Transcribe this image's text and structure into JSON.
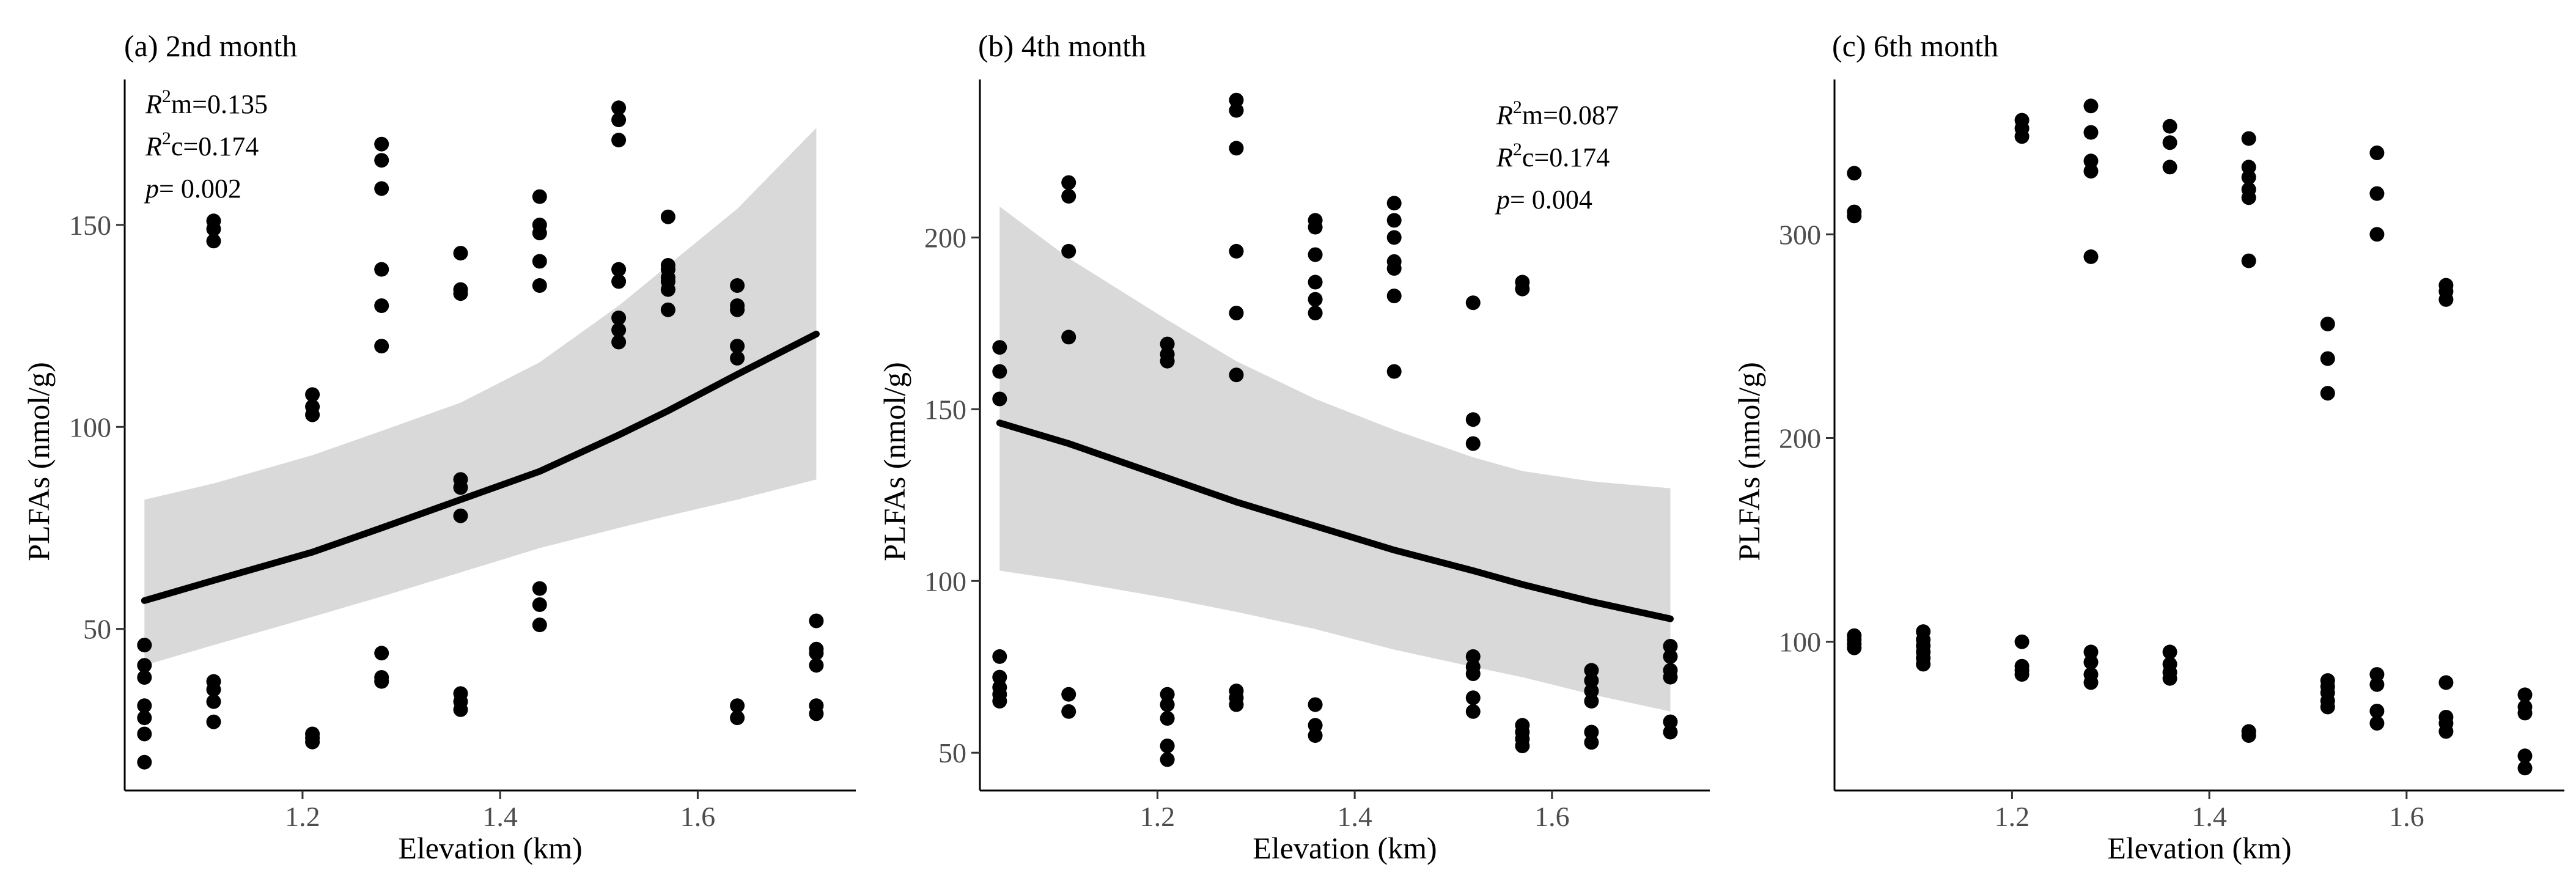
{
  "chart_data": [
    {
      "type": "scatter",
      "title": "(a) 2nd month",
      "xlabel": "Elevation (km)",
      "ylabel": "PLFAs (nmol/g)",
      "xlim": [
        1.02,
        1.76
      ],
      "ylim": [
        10,
        186
      ],
      "xticks": [
        1.2,
        1.4,
        1.6
      ],
      "xtick_labels": [
        "1.2",
        "1.4",
        "1.6"
      ],
      "yticks": [
        50,
        100,
        150
      ],
      "ytick_labels": [
        "50",
        "100",
        "150"
      ],
      "stats": {
        "r2m_label": "m=",
        "r2m_value": "0.135",
        "r2c_label": "c=",
        "r2c_value": "0.174",
        "p_label": "= ",
        "p_value": "0.002"
      },
      "points": [
        [
          1.04,
          46
        ],
        [
          1.04,
          41
        ],
        [
          1.04,
          38
        ],
        [
          1.04,
          31
        ],
        [
          1.04,
          28
        ],
        [
          1.04,
          24
        ],
        [
          1.04,
          17
        ],
        [
          1.11,
          151
        ],
        [
          1.11,
          149
        ],
        [
          1.11,
          146
        ],
        [
          1.11,
          37
        ],
        [
          1.11,
          35
        ],
        [
          1.11,
          32
        ],
        [
          1.11,
          27
        ],
        [
          1.21,
          108
        ],
        [
          1.21,
          105
        ],
        [
          1.21,
          103
        ],
        [
          1.21,
          24
        ],
        [
          1.21,
          23
        ],
        [
          1.21,
          22
        ],
        [
          1.28,
          170
        ],
        [
          1.28,
          166
        ],
        [
          1.28,
          159
        ],
        [
          1.28,
          139
        ],
        [
          1.28,
          130
        ],
        [
          1.28,
          120
        ],
        [
          1.28,
          44
        ],
        [
          1.28,
          38
        ],
        [
          1.28,
          37
        ],
        [
          1.36,
          143
        ],
        [
          1.36,
          134
        ],
        [
          1.36,
          133
        ],
        [
          1.36,
          87
        ],
        [
          1.36,
          85
        ],
        [
          1.36,
          78
        ],
        [
          1.36,
          34
        ],
        [
          1.36,
          32
        ],
        [
          1.36,
          30
        ],
        [
          1.44,
          157
        ],
        [
          1.44,
          150
        ],
        [
          1.44,
          148
        ],
        [
          1.44,
          141
        ],
        [
          1.44,
          135
        ],
        [
          1.44,
          60
        ],
        [
          1.44,
          56
        ],
        [
          1.44,
          51
        ],
        [
          1.52,
          179
        ],
        [
          1.52,
          176
        ],
        [
          1.52,
          171
        ],
        [
          1.52,
          139
        ],
        [
          1.52,
          136
        ],
        [
          1.52,
          127
        ],
        [
          1.52,
          124
        ],
        [
          1.52,
          121
        ],
        [
          1.57,
          152
        ],
        [
          1.57,
          140
        ],
        [
          1.57,
          139
        ],
        [
          1.57,
          137
        ],
        [
          1.57,
          136
        ],
        [
          1.57,
          134
        ],
        [
          1.57,
          129
        ],
        [
          1.64,
          135
        ],
        [
          1.64,
          130
        ],
        [
          1.64,
          129
        ],
        [
          1.64,
          120
        ],
        [
          1.64,
          117
        ],
        [
          1.64,
          31
        ],
        [
          1.64,
          28
        ],
        [
          1.72,
          52
        ],
        [
          1.72,
          45
        ],
        [
          1.72,
          44
        ],
        [
          1.72,
          41
        ],
        [
          1.72,
          31
        ],
        [
          1.72,
          29
        ]
      ],
      "fit": {
        "x": [
          1.04,
          1.11,
          1.21,
          1.28,
          1.36,
          1.44,
          1.52,
          1.57,
          1.64,
          1.72
        ],
        "y": [
          57,
          62,
          69,
          75,
          82,
          89,
          98,
          104,
          113,
          123
        ]
      },
      "ci_upper": {
        "x": [
          1.04,
          1.11,
          1.21,
          1.28,
          1.36,
          1.44,
          1.52,
          1.57,
          1.64,
          1.72
        ],
        "y": [
          82,
          86,
          93,
          99,
          106,
          116,
          130,
          140,
          154,
          174
        ]
      },
      "ci_lower": {
        "x": [
          1.04,
          1.11,
          1.21,
          1.28,
          1.36,
          1.44,
          1.52,
          1.57,
          1.64,
          1.72
        ],
        "y": [
          41,
          46,
          53,
          58,
          64,
          70,
          75,
          78,
          82,
          87
        ]
      }
    },
    {
      "type": "scatter",
      "title": "(b) 4th month",
      "xlabel": "Elevation (km)",
      "ylabel": "PLFAs (nmol/g)",
      "xlim": [
        1.02,
        1.76
      ],
      "ylim": [
        39,
        246
      ],
      "xticks": [
        1.2,
        1.4,
        1.6
      ],
      "xtick_labels": [
        "1.2",
        "1.4",
        "1.6"
      ],
      "yticks": [
        50,
        100,
        150,
        200
      ],
      "ytick_labels": [
        "50",
        "100",
        "150",
        "200"
      ],
      "stats": {
        "r2m_label": "m=",
        "r2m_value": "0.087",
        "r2c_label": "c=",
        "r2c_value": "0.174",
        "p_label": "= ",
        "p_value": "0.004"
      },
      "points": [
        [
          1.04,
          168
        ],
        [
          1.04,
          161
        ],
        [
          1.04,
          153
        ],
        [
          1.04,
          78
        ],
        [
          1.04,
          72
        ],
        [
          1.04,
          69
        ],
        [
          1.04,
          67
        ],
        [
          1.04,
          65
        ],
        [
          1.11,
          216
        ],
        [
          1.11,
          212
        ],
        [
          1.11,
          196
        ],
        [
          1.11,
          171
        ],
        [
          1.11,
          67
        ],
        [
          1.11,
          62
        ],
        [
          1.21,
          169
        ],
        [
          1.21,
          166
        ],
        [
          1.21,
          164
        ],
        [
          1.21,
          67
        ],
        [
          1.21,
          64
        ],
        [
          1.21,
          60
        ],
        [
          1.21,
          52
        ],
        [
          1.21,
          48
        ],
        [
          1.28,
          240
        ],
        [
          1.28,
          237
        ],
        [
          1.28,
          226
        ],
        [
          1.28,
          196
        ],
        [
          1.28,
          178
        ],
        [
          1.28,
          160
        ],
        [
          1.28,
          68
        ],
        [
          1.28,
          66
        ],
        [
          1.28,
          64
        ],
        [
          1.36,
          205
        ],
        [
          1.36,
          203
        ],
        [
          1.36,
          195
        ],
        [
          1.36,
          187
        ],
        [
          1.36,
          182
        ],
        [
          1.36,
          178
        ],
        [
          1.36,
          64
        ],
        [
          1.36,
          58
        ],
        [
          1.36,
          55
        ],
        [
          1.44,
          210
        ],
        [
          1.44,
          205
        ],
        [
          1.44,
          200
        ],
        [
          1.44,
          193
        ],
        [
          1.44,
          191
        ],
        [
          1.44,
          183
        ],
        [
          1.44,
          161
        ],
        [
          1.52,
          181
        ],
        [
          1.52,
          147
        ],
        [
          1.52,
          140
        ],
        [
          1.52,
          78
        ],
        [
          1.52,
          75
        ],
        [
          1.52,
          73
        ],
        [
          1.52,
          66
        ],
        [
          1.52,
          62
        ],
        [
          1.57,
          187
        ],
        [
          1.57,
          185
        ],
        [
          1.57,
          58
        ],
        [
          1.57,
          56
        ],
        [
          1.57,
          54
        ],
        [
          1.57,
          52
        ],
        [
          1.64,
          74
        ],
        [
          1.64,
          71
        ],
        [
          1.64,
          68
        ],
        [
          1.64,
          65
        ],
        [
          1.64,
          56
        ],
        [
          1.64,
          53
        ],
        [
          1.72,
          81
        ],
        [
          1.72,
          78
        ],
        [
          1.72,
          74
        ],
        [
          1.72,
          72
        ],
        [
          1.72,
          59
        ],
        [
          1.72,
          56
        ]
      ],
      "fit": {
        "x": [
          1.04,
          1.11,
          1.21,
          1.28,
          1.36,
          1.44,
          1.52,
          1.57,
          1.64,
          1.72
        ],
        "y": [
          146,
          140,
          130,
          123,
          116,
          109,
          103,
          99,
          94,
          89
        ]
      },
      "ci_upper": {
        "x": [
          1.04,
          1.11,
          1.21,
          1.28,
          1.36,
          1.44,
          1.52,
          1.57,
          1.64,
          1.72
        ],
        "y": [
          209,
          194,
          176,
          164,
          153,
          144,
          136,
          132,
          129,
          127
        ]
      },
      "ci_lower": {
        "x": [
          1.04,
          1.11,
          1.21,
          1.28,
          1.36,
          1.44,
          1.52,
          1.57,
          1.64,
          1.72
        ],
        "y": [
          103,
          100,
          95,
          91,
          86,
          80,
          75,
          72,
          67,
          62
        ]
      }
    },
    {
      "type": "scatter",
      "title": "(c) 6th month",
      "xlabel": "Elevation (km)",
      "ylabel": "PLFAs (nmol/g)",
      "xlim": [
        1.02,
        1.76
      ],
      "ylim": [
        27,
        376
      ],
      "xticks": [
        1.2,
        1.4,
        1.6
      ],
      "xtick_labels": [
        "1.2",
        "1.4",
        "1.6"
      ],
      "yticks": [
        100,
        200,
        300
      ],
      "ytick_labels": [
        "100",
        "200",
        "300"
      ],
      "points": [
        [
          1.04,
          330
        ],
        [
          1.04,
          311
        ],
        [
          1.04,
          309
        ],
        [
          1.04,
          103
        ],
        [
          1.04,
          101
        ],
        [
          1.04,
          99
        ],
        [
          1.04,
          97
        ],
        [
          1.11,
          105
        ],
        [
          1.11,
          101
        ],
        [
          1.11,
          98
        ],
        [
          1.11,
          95
        ],
        [
          1.11,
          92
        ],
        [
          1.11,
          89
        ],
        [
          1.21,
          356
        ],
        [
          1.21,
          352
        ],
        [
          1.21,
          348
        ],
        [
          1.21,
          100
        ],
        [
          1.21,
          88
        ],
        [
          1.21,
          86
        ],
        [
          1.21,
          84
        ],
        [
          1.28,
          363
        ],
        [
          1.28,
          350
        ],
        [
          1.28,
          336
        ],
        [
          1.28,
          331
        ],
        [
          1.28,
          289
        ],
        [
          1.28,
          95
        ],
        [
          1.28,
          90
        ],
        [
          1.28,
          84
        ],
        [
          1.28,
          80
        ],
        [
          1.36,
          353
        ],
        [
          1.36,
          345
        ],
        [
          1.36,
          333
        ],
        [
          1.36,
          95
        ],
        [
          1.36,
          89
        ],
        [
          1.36,
          85
        ],
        [
          1.36,
          82
        ],
        [
          1.44,
          347
        ],
        [
          1.44,
          333
        ],
        [
          1.44,
          328
        ],
        [
          1.44,
          322
        ],
        [
          1.44,
          318
        ],
        [
          1.44,
          287
        ],
        [
          1.44,
          56
        ],
        [
          1.44,
          54
        ],
        [
          1.52,
          256
        ],
        [
          1.52,
          239
        ],
        [
          1.52,
          222
        ],
        [
          1.52,
          81
        ],
        [
          1.52,
          78
        ],
        [
          1.52,
          75
        ],
        [
          1.52,
          71
        ],
        [
          1.52,
          68
        ],
        [
          1.57,
          340
        ],
        [
          1.57,
          320
        ],
        [
          1.57,
          300
        ],
        [
          1.57,
          84
        ],
        [
          1.57,
          79
        ],
        [
          1.57,
          66
        ],
        [
          1.57,
          60
        ],
        [
          1.64,
          275
        ],
        [
          1.64,
          272
        ],
        [
          1.64,
          268
        ],
        [
          1.64,
          80
        ],
        [
          1.64,
          63
        ],
        [
          1.64,
          60
        ],
        [
          1.64,
          56
        ],
        [
          1.72,
          74
        ],
        [
          1.72,
          68
        ],
        [
          1.72,
          65
        ],
        [
          1.72,
          44
        ],
        [
          1.72,
          38
        ]
      ]
    }
  ]
}
